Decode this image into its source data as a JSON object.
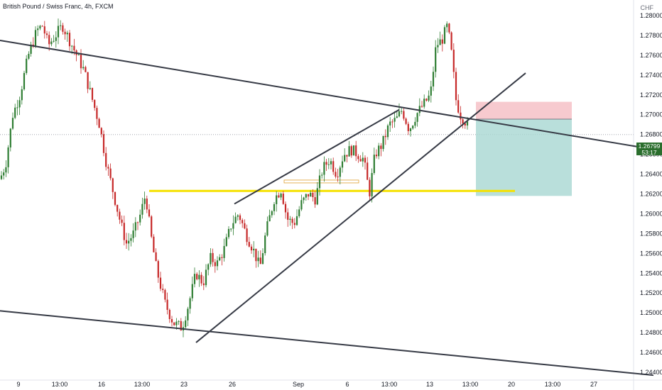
{
  "header": {
    "title": "British Pound / Swiss Franc, 4h, FXCM",
    "currency": "CHF"
  },
  "last_price": {
    "price": "1.26799",
    "countdown": "53:17"
  },
  "colors": {
    "up": "#26a69a",
    "down": "#ef5350",
    "up_body": "#2e7d32",
    "down_body": "#c62828",
    "trendline": "#363a45",
    "support": "#f5e100",
    "stop_zone": "#f4b8bf",
    "target_zone": "#a7d7d2"
  },
  "chart_data": {
    "type": "candlestick",
    "title": "British Pound / Swiss Franc, 4h, FXCM",
    "instrument": "GBPCHF",
    "timeframe": "4h",
    "source": "FXCM",
    "ylim": [
      1.243,
      1.282
    ],
    "y_ticks": [
      "1.28000",
      "1.27800",
      "1.27600",
      "1.27400",
      "1.27200",
      "1.27000",
      "1.26800",
      "1.26600",
      "1.26400",
      "1.26200",
      "1.26000",
      "1.25800",
      "1.25600",
      "1.25400",
      "1.25200",
      "1.25000",
      "1.24800",
      "1.24600",
      "1.24400"
    ],
    "x_ticks": [
      "9",
      "13:00",
      "16",
      "13:00",
      "23",
      "26",
      "Sep",
      "6",
      "13:00",
      "13",
      "13:00",
      "20",
      "13:00",
      "27"
    ],
    "price_path": [
      [
        0,
        1.2635
      ],
      [
        8,
        1.265
      ],
      [
        18,
        1.27
      ],
      [
        28,
        1.272
      ],
      [
        40,
        1.276
      ],
      [
        52,
        1.2785
      ],
      [
        60,
        1.279
      ],
      [
        68,
        1.277
      ],
      [
        78,
        1.278
      ],
      [
        88,
        1.279
      ],
      [
        98,
        1.2775
      ],
      [
        108,
        1.276
      ],
      [
        118,
        1.2745
      ],
      [
        128,
        1.272
      ],
      [
        140,
        1.269
      ],
      [
        150,
        1.265
      ],
      [
        160,
        1.262
      ],
      [
        170,
        1.259
      ],
      [
        178,
        1.257
      ],
      [
        188,
        1.258
      ],
      [
        198,
        1.26
      ],
      [
        205,
        1.262
      ],
      [
        212,
        1.258
      ],
      [
        220,
        1.2545
      ],
      [
        232,
        1.251
      ],
      [
        244,
        1.249
      ],
      [
        256,
        1.2485
      ],
      [
        266,
        1.251
      ],
      [
        276,
        1.254
      ],
      [
        286,
        1.253
      ],
      [
        296,
        1.2555
      ],
      [
        306,
        1.255
      ],
      [
        316,
        1.2565
      ],
      [
        326,
        1.259
      ],
      [
        336,
        1.26
      ],
      [
        346,
        1.258
      ],
      [
        356,
        1.2565
      ],
      [
        366,
        1.2545
      ],
      [
        374,
        1.258
      ],
      [
        386,
        1.2615
      ],
      [
        396,
        1.2625
      ],
      [
        404,
        1.2595
      ],
      [
        414,
        1.259
      ],
      [
        424,
        1.261
      ],
      [
        434,
        1.262
      ],
      [
        444,
        1.2615
      ],
      [
        454,
        1.2645
      ],
      [
        464,
        1.2655
      ],
      [
        474,
        1.264
      ],
      [
        484,
        1.266
      ],
      [
        494,
        1.2665
      ],
      [
        504,
        1.266
      ],
      [
        512,
        1.2655
      ],
      [
        520,
        1.262
      ],
      [
        528,
        1.266
      ],
      [
        538,
        1.267
      ],
      [
        548,
        1.269
      ],
      [
        558,
        1.2695
      ],
      [
        566,
        1.2705
      ],
      [
        576,
        1.2685
      ],
      [
        586,
        1.27
      ],
      [
        596,
        1.271
      ],
      [
        606,
        1.272
      ],
      [
        614,
        1.277
      ],
      [
        622,
        1.2775
      ],
      [
        630,
        1.279
      ],
      [
        636,
        1.276
      ],
      [
        642,
        1.2715
      ],
      [
        648,
        1.27
      ],
      [
        654,
        1.2695
      ],
      [
        660,
        1.2685
      ]
    ],
    "trendlines": [
      {
        "name": "descending-resistance",
        "from": [
          0,
          1.2775
        ],
        "to": [
          920,
          1.2665
        ]
      },
      {
        "name": "lower-channel",
        "from": [
          0,
          1.2502
        ],
        "to": [
          920,
          1.2437
        ]
      },
      {
        "name": "rising-wedge-top",
        "from": [
          330,
          1.261
        ],
        "to": [
          562,
          1.2705
        ]
      },
      {
        "name": "rising-wedge-bottom",
        "from": [
          276,
          1.247
        ],
        "to": [
          740,
          1.2742
        ]
      }
    ],
    "support_level": {
      "price": 1.2623,
      "x_from": 210,
      "x_to": 725
    },
    "position": {
      "entry": 1.26955,
      "stop": 1.2713,
      "target": 1.2618,
      "x_from": 670,
      "x_to": 805
    }
  }
}
